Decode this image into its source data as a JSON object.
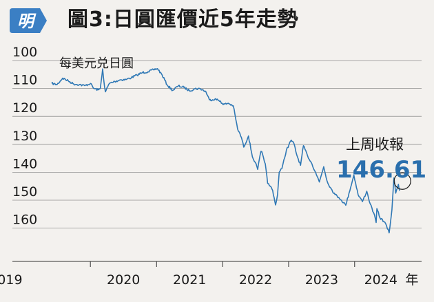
{
  "header": {
    "logo_text": "明",
    "title": "圖3:日圓匯價近5年走勢"
  },
  "colors": {
    "line": "#2f78b5",
    "callout_value": "#2a6fad",
    "grid": "#8f8f8f",
    "text": "#1a1a1a",
    "logo_bg": "#3b7fc4",
    "background": "#f3f1ee"
  },
  "chart_data": {
    "type": "line",
    "title": "",
    "ylabel": "每美元兑日圓",
    "x_unit": "年",
    "y_inverted": true,
    "ylim": [
      100,
      160
    ],
    "xlim": [
      "2019-06-01",
      "2024-09-13"
    ],
    "yticks": [
      100,
      110,
      120,
      130,
      140,
      150,
      160
    ],
    "xticks": [
      "2019",
      "2020",
      "2021",
      "2022",
      "2023",
      "2024"
    ],
    "grid": "horizontal",
    "annotation": {
      "label": "上周收報",
      "value": "146.61",
      "date": "2024-09-06",
      "y": 146.61
    },
    "series": [
      {
        "x": [
          "2019-06-01",
          "2019-07-01",
          "2019-08-01",
          "2019-09-01",
          "2019-10-01",
          "2019-11-01",
          "2019-12-01",
          "2020-01-01",
          "2020-01-20",
          "2020-02-15",
          "2020-02-25",
          "2020-03-09",
          "2020-03-15",
          "2020-03-24",
          "2020-04-15",
          "2020-05-15",
          "2020-06-15",
          "2020-07-15",
          "2020-08-15",
          "2020-09-15",
          "2020-10-15",
          "2020-11-15",
          "2020-12-15",
          "2021-01-06",
          "2021-02-01",
          "2021-03-01",
          "2021-03-31",
          "2021-05-01",
          "2021-06-01",
          "2021-07-01",
          "2021-08-01",
          "2021-09-01",
          "2021-10-01",
          "2021-10-20",
          "2021-11-20",
          "2021-12-20",
          "2022-01-04",
          "2022-02-01",
          "2022-03-01",
          "2022-03-25",
          "2022-04-15",
          "2022-04-28",
          "2022-05-24",
          "2022-06-15",
          "2022-06-30",
          "2022-07-14",
          "2022-08-01",
          "2022-08-10",
          "2022-08-25",
          "2022-09-07",
          "2022-09-22",
          "2022-10-05",
          "2022-10-21",
          "2022-11-01",
          "2022-11-10",
          "2022-11-25",
          "2022-12-01",
          "2022-12-20",
          "2023-01-16",
          "2023-02-01",
          "2023-02-15",
          "2023-03-08",
          "2023-03-24",
          "2023-04-15",
          "2023-05-10",
          "2023-05-30",
          "2023-06-20",
          "2023-07-14",
          "2023-08-01",
          "2023-08-20",
          "2023-09-15",
          "2023-10-05",
          "2023-10-20",
          "2023-11-13",
          "2023-12-01",
          "2023-12-28",
          "2024-01-20",
          "2024-02-13",
          "2024-03-08",
          "2024-03-27",
          "2024-04-15",
          "2024-04-29",
          "2024-05-03",
          "2024-05-20",
          "2024-06-15",
          "2024-07-10",
          "2024-07-25",
          "2024-08-05",
          "2024-08-15",
          "2024-08-30",
          "2024-09-06"
        ],
        "values": [
          108.2,
          108.6,
          106.3,
          107.3,
          108.4,
          108.6,
          109.0,
          108.2,
          110.0,
          110.5,
          110.0,
          103.0,
          107.0,
          111.2,
          108.2,
          107.5,
          106.9,
          106.8,
          106.1,
          105.2,
          104.3,
          104.0,
          103.3,
          102.9,
          105.2,
          108.8,
          110.7,
          109.1,
          109.6,
          110.8,
          110.1,
          110.1,
          111.2,
          114.1,
          113.8,
          114.5,
          115.8,
          115.3,
          116.2,
          124.5,
          127.5,
          131.0,
          127.0,
          134.5,
          136.4,
          139.0,
          132.5,
          133.5,
          137.0,
          144.0,
          145.0,
          146.5,
          151.7,
          148.0,
          140.0,
          138.7,
          137.0,
          132.0,
          128.5,
          130.0,
          133.8,
          137.5,
          130.5,
          134.0,
          137.0,
          140.0,
          143.5,
          138.0,
          143.0,
          145.5,
          148.0,
          149.0,
          150.0,
          151.8,
          147.5,
          141.0,
          148.0,
          150.5,
          146.8,
          151.3,
          154.5,
          158.0,
          153.0,
          156.3,
          157.8,
          161.7,
          153.5,
          142.0,
          147.5,
          144.3,
          146.61
        ]
      }
    ]
  }
}
